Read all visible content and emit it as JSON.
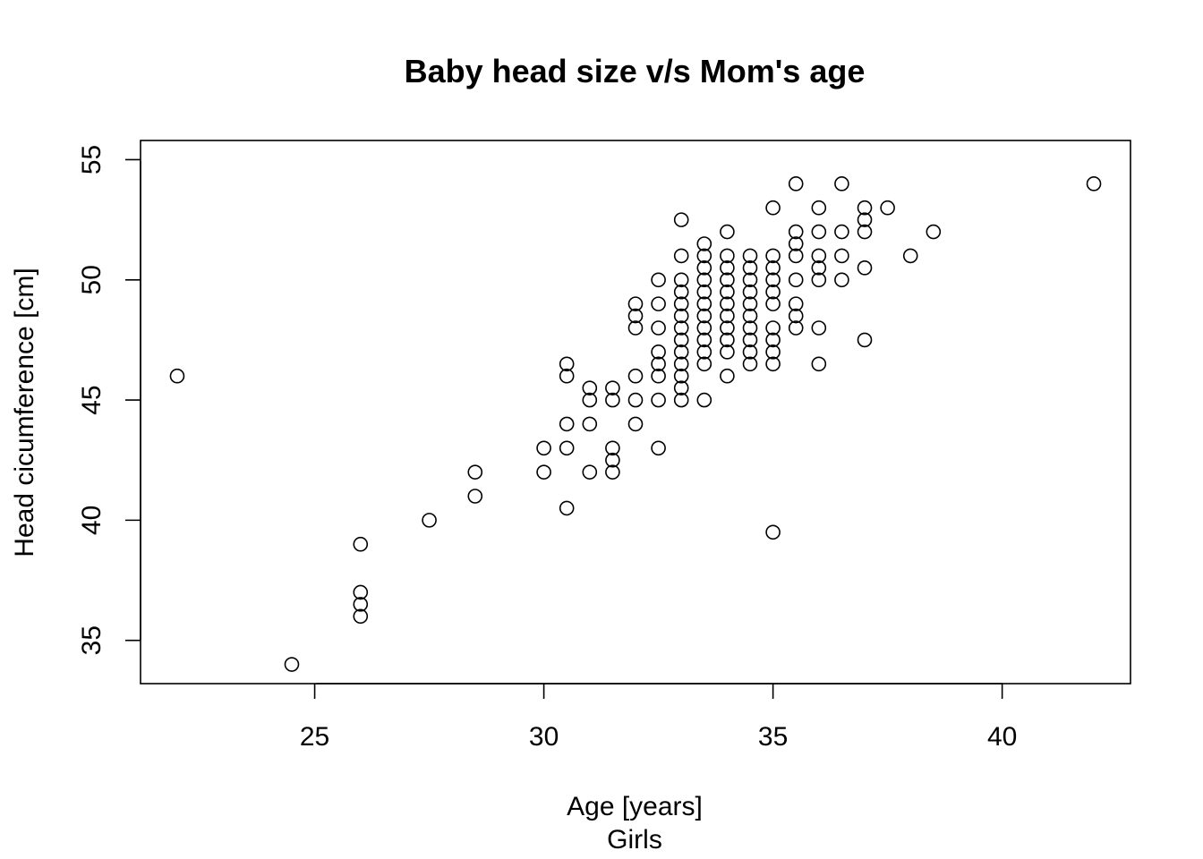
{
  "chart_data": {
    "type": "scatter",
    "title": "Baby head size v/s Mom's age",
    "xlabel": "Age [years]",
    "sublabel": "Girls",
    "ylabel": "Head cicumference [cm]",
    "xlim": [
      21.2,
      42.8
    ],
    "ylim": [
      33.2,
      55.8
    ],
    "xticks": [
      25,
      30,
      35,
      40
    ],
    "yticks": [
      35,
      40,
      45,
      50,
      55
    ],
    "grid": false,
    "marker": "open-circle",
    "points": [
      [
        22,
        46
      ],
      [
        24.5,
        34
      ],
      [
        26,
        39
      ],
      [
        26,
        37
      ],
      [
        26,
        36.5
      ],
      [
        26,
        36
      ],
      [
        27.5,
        40
      ],
      [
        28.5,
        42
      ],
      [
        28.5,
        41
      ],
      [
        30,
        43
      ],
      [
        30,
        42
      ],
      [
        30.5,
        46.5
      ],
      [
        30.5,
        46
      ],
      [
        30.5,
        44
      ],
      [
        30.5,
        43
      ],
      [
        30.5,
        40.5
      ],
      [
        31,
        45.5
      ],
      [
        31,
        45
      ],
      [
        31,
        44
      ],
      [
        31,
        42
      ],
      [
        31.5,
        45.5
      ],
      [
        31.5,
        45
      ],
      [
        31.5,
        43
      ],
      [
        31.5,
        42.5
      ],
      [
        31.5,
        42
      ],
      [
        32,
        49
      ],
      [
        32,
        48.5
      ],
      [
        32,
        48
      ],
      [
        32,
        46
      ],
      [
        32,
        45
      ],
      [
        32,
        44
      ],
      [
        32.5,
        50
      ],
      [
        32.5,
        49
      ],
      [
        32.5,
        48
      ],
      [
        32.5,
        47
      ],
      [
        32.5,
        46.5
      ],
      [
        32.5,
        46
      ],
      [
        32.5,
        45
      ],
      [
        32.5,
        43
      ],
      [
        33,
        52.5
      ],
      [
        33,
        51
      ],
      [
        33,
        50
      ],
      [
        33,
        49.5
      ],
      [
        33,
        49
      ],
      [
        33,
        48.5
      ],
      [
        33,
        48
      ],
      [
        33,
        47.5
      ],
      [
        33,
        47
      ],
      [
        33,
        46.5
      ],
      [
        33,
        46
      ],
      [
        33,
        45.5
      ],
      [
        33,
        45
      ],
      [
        33.5,
        51.5
      ],
      [
        33.5,
        51
      ],
      [
        33.5,
        50.5
      ],
      [
        33.5,
        50
      ],
      [
        33.5,
        49.5
      ],
      [
        33.5,
        49
      ],
      [
        33.5,
        48.5
      ],
      [
        33.5,
        48
      ],
      [
        33.5,
        47.5
      ],
      [
        33.5,
        47
      ],
      [
        33.5,
        46.5
      ],
      [
        33.5,
        45
      ],
      [
        34,
        52
      ],
      [
        34,
        51
      ],
      [
        34,
        50.5
      ],
      [
        34,
        50
      ],
      [
        34,
        49.5
      ],
      [
        34,
        49
      ],
      [
        34,
        48.5
      ],
      [
        34,
        48
      ],
      [
        34,
        47.5
      ],
      [
        34,
        47
      ],
      [
        34,
        46
      ],
      [
        34.5,
        51
      ],
      [
        34.5,
        50.5
      ],
      [
        34.5,
        50
      ],
      [
        34.5,
        49.5
      ],
      [
        34.5,
        49
      ],
      [
        34.5,
        48.5
      ],
      [
        34.5,
        48
      ],
      [
        34.5,
        47.5
      ],
      [
        34.5,
        47
      ],
      [
        34.5,
        46.5
      ],
      [
        35,
        53
      ],
      [
        35,
        51
      ],
      [
        35,
        50.5
      ],
      [
        35,
        50
      ],
      [
        35,
        49.5
      ],
      [
        35,
        49
      ],
      [
        35,
        48
      ],
      [
        35,
        47.5
      ],
      [
        35,
        47
      ],
      [
        35,
        46.5
      ],
      [
        35,
        39.5
      ],
      [
        35.5,
        54
      ],
      [
        35.5,
        52
      ],
      [
        35.5,
        51.5
      ],
      [
        35.5,
        51
      ],
      [
        35.5,
        50
      ],
      [
        35.5,
        49
      ],
      [
        35.5,
        48.5
      ],
      [
        35.5,
        48
      ],
      [
        36,
        53
      ],
      [
        36,
        52
      ],
      [
        36,
        51
      ],
      [
        36,
        50.5
      ],
      [
        36,
        50
      ],
      [
        36,
        48
      ],
      [
        36,
        46.5
      ],
      [
        36.5,
        54
      ],
      [
        36.5,
        52
      ],
      [
        36.5,
        51
      ],
      [
        36.5,
        50
      ],
      [
        37,
        53
      ],
      [
        37,
        52.5
      ],
      [
        37,
        52
      ],
      [
        37,
        50.5
      ],
      [
        37,
        47.5
      ],
      [
        37.5,
        53
      ],
      [
        38,
        51
      ],
      [
        38.5,
        52
      ],
      [
        42,
        54
      ]
    ]
  }
}
